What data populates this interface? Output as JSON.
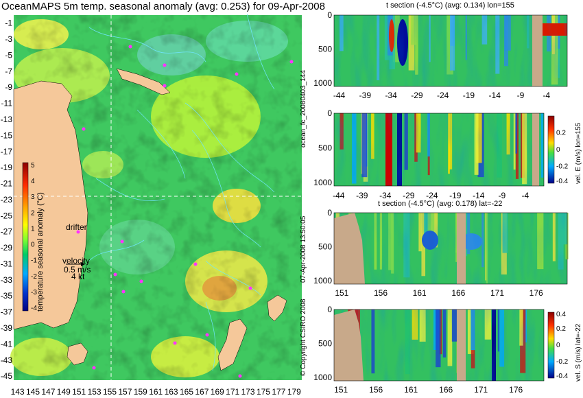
{
  "title": "OceanMAPS 5m temp. seasonal anomaly (avg: 0.253) for 09-Apr-2008",
  "side_labels": {
    "forecast_id": "ocean_fc_20080403_144",
    "issued": "07-Apr-2008 13:50:05",
    "copyright": "© Copyright CSIRO 2008"
  },
  "map_legend": {
    "drifter_label": "drifter",
    "velocity_label": "velocity",
    "velocity_scale": "0.5 m/s",
    "velocity_knots": "4 kt"
  },
  "colors": {
    "land": "#f5c89a",
    "contour": "#6fe6ff",
    "drifter": "#ff33ff",
    "section_land": "#c8a98a",
    "guide_line": "#ffffff"
  },
  "chart_data": [
    {
      "id": "map",
      "type": "heatmap",
      "title": "OceanMAPS 5m temp. seasonal anomaly (avg: 0.253) for 09-Apr-2008",
      "x_ticks": [
        143,
        145,
        147,
        149,
        151,
        153,
        155,
        157,
        159,
        161,
        163,
        165,
        167,
        169,
        171,
        173,
        175,
        177,
        179
      ],
      "y_ticks": [
        -1,
        -3,
        -5,
        -7,
        -9,
        -11,
        -13,
        -15,
        -17,
        -19,
        -21,
        -23,
        -25,
        -27,
        -29,
        -31,
        -33,
        -35,
        -37,
        -39,
        -41,
        -43,
        -45
      ],
      "xlim": [
        142.5,
        180
      ],
      "ylim": [
        -45.5,
        0
      ],
      "guide_lon": 155,
      "guide_lat": -22,
      "colorbar": {
        "label": "temperature seasonal anomaly (°C)",
        "range": [
          -4,
          5
        ],
        "ticks": [
          5,
          4,
          3,
          2,
          1,
          0,
          -1,
          -2,
          -3,
          -4
        ]
      }
    },
    {
      "id": "t_section_lon",
      "type": "heatmap",
      "title": "t section (-4.5°C) (avg: 0.134) lon=155",
      "x_ticks": [
        -44,
        -39,
        -34,
        -29,
        -24,
        -19,
        -14,
        -9,
        -4
      ],
      "y_ticks": [
        0,
        500,
        1000
      ],
      "xlim": [
        -45,
        0
      ],
      "ylim": [
        1050,
        0
      ]
    },
    {
      "id": "v_section_lon",
      "type": "heatmap",
      "x_ticks": [
        -44,
        -39,
        -34,
        -29,
        -24,
        -19,
        -14,
        -9,
        -4
      ],
      "y_ticks": [
        0,
        500,
        1000
      ],
      "xlim": [
        -45,
        0
      ],
      "ylim": [
        1050,
        0
      ],
      "colorbar": {
        "label": "vel. E (m/s) lon=155",
        "range": [
          -0.4,
          0.4
        ],
        "ticks": [
          "0.2",
          "0",
          "-0.2",
          "-0.4"
        ]
      }
    },
    {
      "id": "t_section_lat",
      "type": "heatmap",
      "title": "t section (-4.5°C) (avg: 0.178) lat=-22",
      "x_ticks": [
        151,
        156,
        161,
        166,
        171,
        176
      ],
      "y_ticks": [
        0,
        500,
        1000
      ],
      "xlim": [
        150,
        180
      ],
      "ylim": [
        1050,
        0
      ]
    },
    {
      "id": "v_section_lat",
      "type": "heatmap",
      "x_ticks": [
        151,
        156,
        161,
        166,
        171,
        176
      ],
      "y_ticks": [
        0,
        500,
        1000
      ],
      "xlim": [
        150,
        180
      ],
      "ylim": [
        1050,
        0
      ],
      "colorbar": {
        "label": "vel. S (m/s) lat=-22",
        "range": [
          -0.4,
          0.4
        ],
        "ticks": [
          "0.4",
          "0.2",
          "0",
          "-0.2",
          "-0.4"
        ]
      }
    }
  ]
}
